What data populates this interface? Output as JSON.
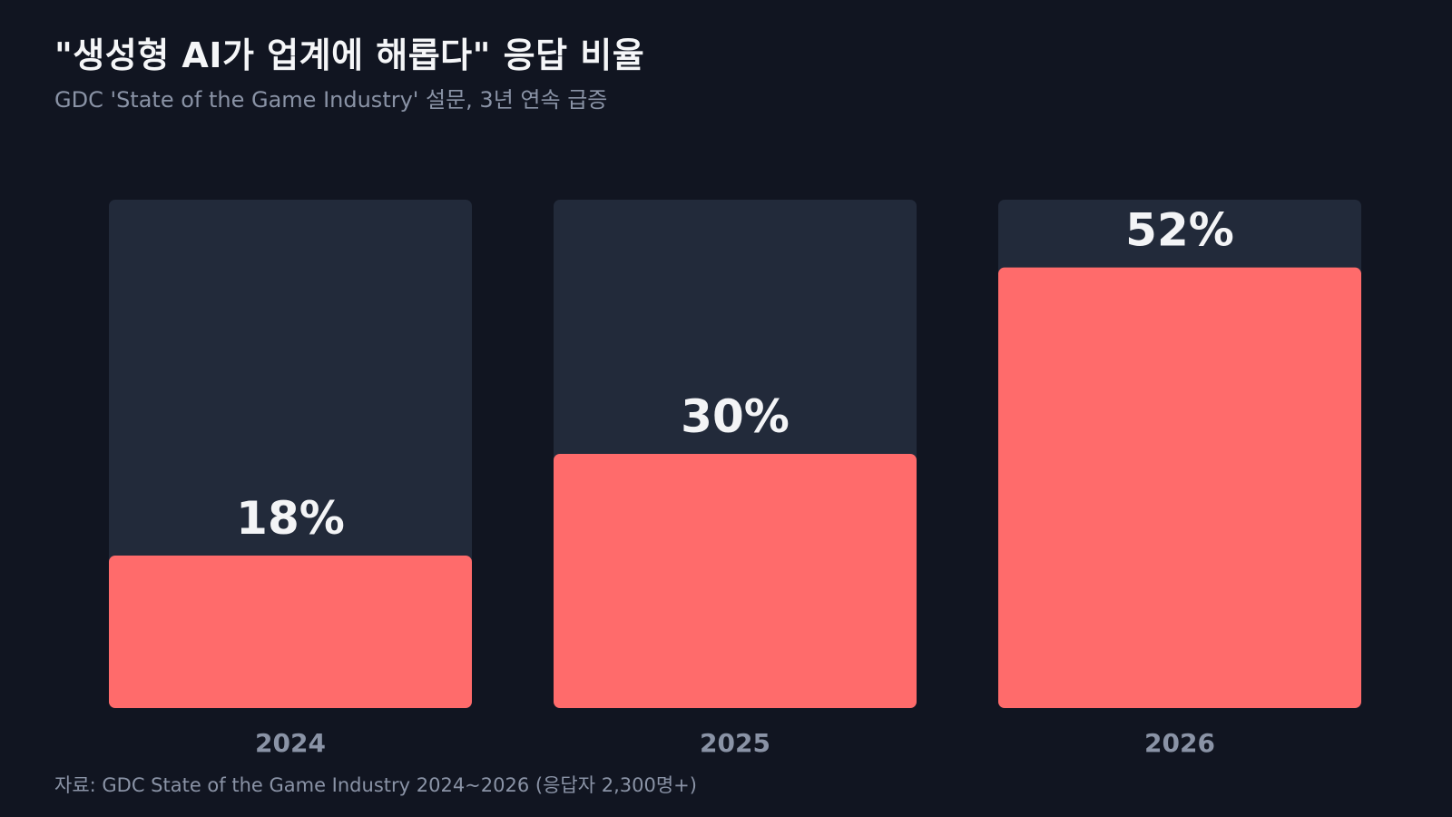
{
  "title": "\"생성형 AI가 업계에 해롭다\" 응답 비율",
  "subtitle": "GDC 'State of the Game Industry' 설문, 3년 연속 급증",
  "source": "자료: GDC State of the Game Industry 2024~2026 (응답자 2,300명+)",
  "colors": {
    "background": "#111521",
    "track": "#222a3a",
    "bar": "#ff6b6b",
    "value_label": "#f3f4f6",
    "category_label": "#8a93a6"
  },
  "chart_data": {
    "type": "bar",
    "categories": [
      "2024",
      "2025",
      "2026"
    ],
    "values": [
      18,
      30,
      52
    ],
    "value_labels": [
      "18%",
      "30%",
      "52%"
    ],
    "ylim": [
      0,
      60
    ],
    "grid": false,
    "legend": "none"
  }
}
